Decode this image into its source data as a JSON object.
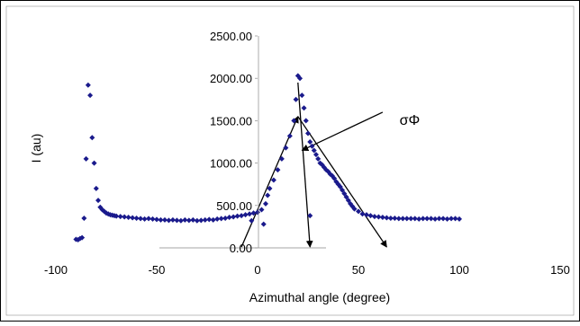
{
  "chart_data": {
    "type": "scatter",
    "title": "",
    "xlabel": "Azimuthal angle (degree)",
    "ylabel": "I (au)",
    "xlim": [
      -100,
      150
    ],
    "ylim": [
      0,
      2500
    ],
    "x_ticks": [
      "-100",
      "-50",
      "0",
      "50",
      "100",
      "150"
    ],
    "y_ticks": [
      "0.00",
      "500.00",
      "1000.00",
      "1500.00",
      "2000.00",
      "2500.00"
    ],
    "grid": false,
    "legend": "none",
    "marker_color": "#1a1a8c",
    "series": [
      {
        "points": [
          [
            -90,
            100
          ],
          [
            -89,
            95
          ],
          [
            -88,
            110
          ],
          [
            -87,
            120
          ],
          [
            -86,
            350
          ],
          [
            -85,
            1050
          ],
          [
            -84,
            1920
          ],
          [
            -83,
            1800
          ],
          [
            -82,
            1300
          ],
          [
            -81,
            1000
          ],
          [
            -80,
            700
          ],
          [
            -79,
            560
          ],
          [
            -78,
            480
          ],
          [
            -77,
            450
          ],
          [
            -76,
            430
          ],
          [
            -75,
            410
          ],
          [
            -74,
            400
          ],
          [
            -73,
            390
          ],
          [
            -72,
            385
          ],
          [
            -71,
            380
          ],
          [
            -70,
            375
          ],
          [
            -68,
            370
          ],
          [
            -66,
            365
          ],
          [
            -64,
            360
          ],
          [
            -62,
            355
          ],
          [
            -60,
            350
          ],
          [
            -58,
            345
          ],
          [
            -56,
            340
          ],
          [
            -54,
            345
          ],
          [
            -52,
            340
          ],
          [
            -50,
            335
          ],
          [
            -48,
            330
          ],
          [
            -46,
            330
          ],
          [
            -44,
            325
          ],
          [
            -42,
            330
          ],
          [
            -40,
            325
          ],
          [
            -38,
            320
          ],
          [
            -36,
            330
          ],
          [
            -34,
            325
          ],
          [
            -32,
            330
          ],
          [
            -30,
            320
          ],
          [
            -28,
            325
          ],
          [
            -26,
            330
          ],
          [
            -24,
            335
          ],
          [
            -22,
            330
          ],
          [
            -20,
            340
          ],
          [
            -18,
            345
          ],
          [
            -16,
            350
          ],
          [
            -14,
            360
          ],
          [
            -12,
            365
          ],
          [
            -10,
            375
          ],
          [
            -8,
            380
          ],
          [
            -6,
            390
          ],
          [
            -4,
            400
          ],
          [
            -2,
            410
          ],
          [
            0,
            420
          ],
          [
            2,
            450
          ],
          [
            4,
            520
          ],
          [
            5,
            620
          ],
          [
            6,
            700
          ],
          [
            8,
            800
          ],
          [
            10,
            920
          ],
          [
            12,
            1050
          ],
          [
            14,
            1180
          ],
          [
            16,
            1320
          ],
          [
            18,
            1500
          ],
          [
            19,
            1750
          ],
          [
            20,
            2030
          ],
          [
            21,
            2000
          ],
          [
            22,
            1800
          ],
          [
            23,
            1650
          ],
          [
            24,
            1500
          ],
          [
            25,
            1350
          ],
          [
            26,
            1250
          ],
          [
            27,
            1200
          ],
          [
            28,
            1150
          ],
          [
            29,
            1100
          ],
          [
            30,
            1050
          ],
          [
            31,
            1000
          ],
          [
            32,
            980
          ],
          [
            33,
            950
          ],
          [
            34,
            920
          ],
          [
            35,
            900
          ],
          [
            36,
            870
          ],
          [
            37,
            850
          ],
          [
            38,
            820
          ],
          [
            39,
            780
          ],
          [
            40,
            750
          ],
          [
            41,
            720
          ],
          [
            42,
            680
          ],
          [
            43,
            640
          ],
          [
            44,
            600
          ],
          [
            45,
            560
          ],
          [
            46,
            520
          ],
          [
            47,
            490
          ],
          [
            48,
            460
          ],
          [
            50,
            430
          ],
          [
            52,
            400
          ],
          [
            54,
            390
          ],
          [
            56,
            380
          ],
          [
            58,
            370
          ],
          [
            60,
            365
          ],
          [
            62,
            360
          ],
          [
            64,
            355
          ],
          [
            66,
            350
          ],
          [
            68,
            350
          ],
          [
            70,
            345
          ],
          [
            72,
            345
          ],
          [
            74,
            345
          ],
          [
            76,
            345
          ],
          [
            78,
            345
          ],
          [
            80,
            340
          ],
          [
            82,
            345
          ],
          [
            84,
            345
          ],
          [
            86,
            345
          ],
          [
            88,
            340
          ],
          [
            90,
            345
          ],
          [
            92,
            345
          ],
          [
            94,
            340
          ],
          [
            96,
            345
          ],
          [
            98,
            345
          ],
          [
            100,
            340
          ],
          [
            26,
            380
          ],
          [
            -3,
            320
          ],
          [
            3,
            280
          ]
        ]
      }
    ],
    "annotation": {
      "label": "σΦ",
      "description": "line"
    },
    "lines": [
      {
        "from": [
          -8,
          10
        ],
        "to": [
          20,
          1550
        ]
      },
      {
        "from": [
          20,
          1550
        ],
        "to": [
          64,
          10
        ]
      },
      {
        "from": [
          20,
          1950
        ],
        "to": [
          26,
          10
        ]
      },
      {
        "from": [
          62,
          1600
        ],
        "to": [
          22,
          1150
        ]
      }
    ]
  }
}
